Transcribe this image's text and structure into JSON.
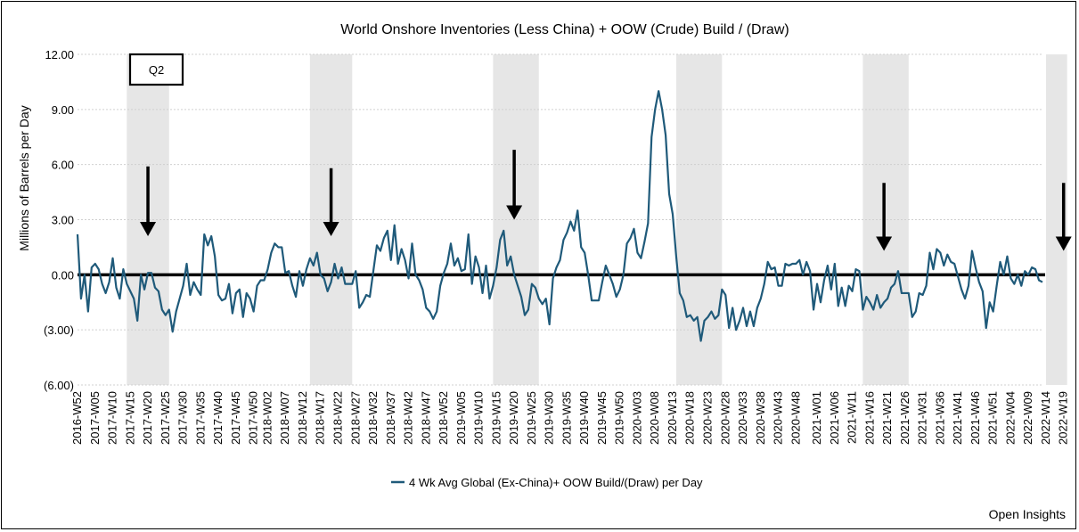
{
  "chart_data": {
    "type": "line",
    "title": "World Onshore Inventories (Less China) + OOW (Crude) Build / (Draw)",
    "ylabel": "Millions of Barrels per Day",
    "ylim": [
      -6,
      12
    ],
    "y_ticks": [
      "12.00",
      "9.00",
      "6.00",
      "3.00",
      "0.00",
      "(3.00)",
      "(6.00)"
    ],
    "y_tick_values": [
      12,
      9,
      6,
      3,
      0,
      -3,
      -6
    ],
    "x_tick_labels": [
      "2016-W52",
      "2017-W05",
      "2017-W10",
      "2017-W15",
      "2017-W20",
      "2017-W25",
      "2017-W30",
      "2017-W35",
      "2017-W40",
      "2017-W45",
      "2017-W50",
      "2018-W02",
      "2018-W07",
      "2018-W12",
      "2018-W17",
      "2018-W22",
      "2018-W27",
      "2018-W32",
      "2018-W37",
      "2018-W42",
      "2018-W47",
      "2018-W52",
      "2019-W05",
      "2019-W10",
      "2019-W15",
      "2019-W20",
      "2019-W25",
      "2019-W30",
      "2019-W35",
      "2019-W40",
      "2019-W45",
      "2019-W50",
      "2020-W03",
      "2020-W08",
      "2020-W13",
      "2020-W18",
      "2020-W23",
      "2020-W28",
      "2020-W33",
      "2020-W38",
      "2020-W43",
      "2020-W48",
      "2021-W01",
      "2021-W06",
      "2021-W11",
      "2021-W16",
      "2021-W21",
      "2021-W26",
      "2021-W31",
      "2021-W36",
      "2021-W41",
      "2021-W46",
      "2021-W51",
      "2022-W04",
      "2022-W09",
      "2022-W14",
      "2022-W19"
    ],
    "legend": "bottom",
    "legend_label": "4 Wk Avg Global (Ex-China)+ OOW Build/(Draw) per Day",
    "series_color": "#1f5a7a",
    "zero_line": true,
    "shaded_periods": [
      {
        "label": "Q2",
        "start": "2017-W14",
        "end": "2017-W26"
      },
      {
        "label": "Q2",
        "start": "2018-W14",
        "end": "2018-W26"
      },
      {
        "label": "Q2",
        "start": "2019-W14",
        "end": "2019-W27"
      },
      {
        "label": "Q2",
        "start": "2020-W14",
        "end": "2020-W27"
      },
      {
        "label": "Q2",
        "start": "2021-W14",
        "end": "2021-W27"
      },
      {
        "label": "Q2",
        "start": "2022-W14",
        "end": "2022-W20"
      }
    ],
    "annotation_box": "Q2",
    "arrows": [
      {
        "x": "2017-W20",
        "from": 5.9,
        "to": 2.1
      },
      {
        "x": "2018-W20",
        "from": 5.8,
        "to": 2.1
      },
      {
        "x": "2019-W20",
        "from": 6.8,
        "to": 3.0
      },
      {
        "x": "2021-W20",
        "from": 5.0,
        "to": 1.3
      },
      {
        "x": "2022-W19",
        "from": 5.0,
        "to": 1.3
      }
    ],
    "series": [
      {
        "start_week": "2016-W52",
        "values": [
          2.2,
          -1.3,
          0.0,
          -2.0,
          0.4,
          0.6,
          0.3,
          -0.5,
          -1.0,
          -0.4,
          0.9,
          -0.7,
          -1.3,
          0.3,
          -0.5,
          -0.9,
          -1.3,
          -2.5,
          0.0,
          -0.8,
          0.1,
          0.1,
          -0.7,
          -0.9,
          -1.9,
          -2.2,
          -1.9,
          -3.1,
          -2.0,
          -1.3,
          -0.6,
          0.6,
          -1.1,
          -0.4,
          -0.8,
          -1.1,
          2.2,
          1.6,
          2.1,
          1.0,
          -1.1,
          -1.4,
          -1.3,
          -0.5,
          -2.1,
          -1.0,
          -0.8,
          -2.3,
          -1.0,
          -1.3,
          -2.0,
          -0.6,
          -0.3,
          -0.3,
          0.3,
          1.2,
          1.7,
          1.5,
          1.5,
          0.1,
          0.2,
          -0.6,
          -1.2,
          0.2,
          -0.6,
          0.3,
          0.9,
          0.5,
          1.2,
          0.0,
          -0.2,
          -0.9,
          -0.4,
          0.6,
          -0.2,
          0.4,
          -0.5,
          -0.5,
          -0.5,
          0.2,
          -1.8,
          -1.5,
          -1.1,
          -1.2,
          0.2,
          1.6,
          1.3,
          2.0,
          2.4,
          0.8,
          2.7,
          0.6,
          1.4,
          0.8,
          -0.2,
          1.7,
          0.0,
          -0.3,
          -0.8,
          -1.8,
          -2.0,
          -2.4,
          -2.0,
          -0.6,
          0.1,
          0.6,
          1.7,
          0.5,
          0.9,
          0.2,
          0.3,
          2.2,
          -0.5,
          1.0,
          0.4,
          -1.0,
          0.5,
          -1.3,
          -0.6,
          0.4,
          1.9,
          2.4,
          0.5,
          1.0,
          0.0,
          -0.6,
          -1.2,
          -2.2,
          -1.9,
          -0.5,
          -0.7,
          -1.3,
          -1.6,
          -1.3,
          -2.7,
          -0.2,
          0.4,
          0.8,
          1.9,
          2.3,
          2.9,
          2.4,
          3.5,
          1.5,
          1.2,
          0.0,
          -1.4,
          -1.4,
          -1.4,
          -0.4,
          0.5,
          0.0,
          -0.5,
          -1.2,
          -0.8,
          0.0,
          1.7,
          2.0,
          2.5,
          1.2,
          0.9,
          1.8,
          2.8,
          7.5,
          9.0,
          10.0,
          9.0,
          7.6,
          4.4,
          3.3,
          1.0,
          -1.0,
          -1.4,
          -2.3,
          -2.2,
          -2.5,
          -2.3,
          -3.6,
          -2.5,
          -2.3,
          -2.0,
          -2.4,
          -2.2,
          -0.8,
          -1.1,
          -2.9,
          -1.8,
          -3.0,
          -2.5,
          -1.8,
          -2.8,
          -2.0,
          -2.8,
          -1.8,
          -1.3,
          -0.5,
          0.7,
          0.3,
          0.4,
          -0.6,
          -0.6,
          0.6,
          0.5,
          0.6,
          0.6,
          0.8,
          0.0,
          0.7,
          0.2,
          -1.9,
          -0.5,
          -1.5,
          -0.3,
          0.5,
          -0.8,
          0.6,
          -1.7,
          -0.7,
          -1.7,
          -0.6,
          -0.9,
          0.3,
          0.2,
          -1.9,
          -1.2,
          -1.5,
          -1.9,
          -1.1,
          -1.8,
          -1.5,
          -1.3,
          -0.7,
          -0.5,
          0.2,
          -1.0,
          -1.0,
          -1.0,
          -2.3,
          -2.0,
          -1.0,
          -1.1,
          -0.6,
          1.2,
          0.3,
          1.4,
          1.2,
          0.5,
          1.1,
          0.7,
          0.6,
          -0.1,
          -0.8,
          -1.3,
          -0.6,
          1.3,
          0.4,
          -0.4,
          -0.9,
          -2.9,
          -1.5,
          -2.0,
          -0.6,
          0.7,
          0.0,
          1.0,
          -0.2,
          -0.5,
          0.0,
          -0.6,
          0.2,
          0.0,
          0.4,
          0.3,
          -0.3,
          -0.4
        ]
      }
    ]
  },
  "source_label": "Open Insights"
}
